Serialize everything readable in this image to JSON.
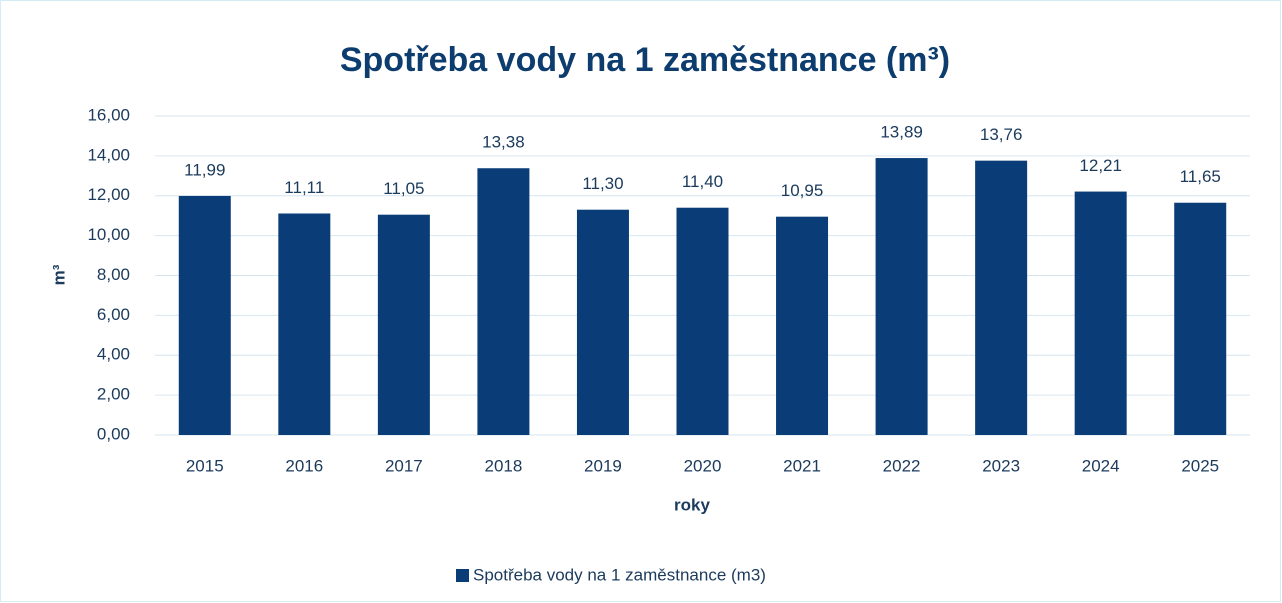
{
  "chart_data": {
    "type": "bar",
    "title": "Spotřeba vody na 1 zaměstnance (m³)",
    "y_label": "m³",
    "x_label": "roky",
    "categories": [
      "2015",
      "2016",
      "2017",
      "2018",
      "2019",
      "2020",
      "2021",
      "2022",
      "2023",
      "2024",
      "2025"
    ],
    "series": [
      {
        "name": "Spotřeba vody na 1 zaměstnance (m3)",
        "color": "#0a3c78",
        "values": [
          11.99,
          11.11,
          11.05,
          13.38,
          11.3,
          11.4,
          10.95,
          13.89,
          13.76,
          12.21,
          11.65
        ],
        "value_labels": [
          "11,99",
          "11,11",
          "11,05",
          "13,38",
          "11,30",
          "11,40",
          "10,95",
          "13,89",
          "13,76",
          "12,21",
          "11,65"
        ]
      }
    ],
    "ylim": [
      0,
      16
    ],
    "yticks": [
      {
        "value": 0,
        "label": "0,00"
      },
      {
        "value": 2,
        "label": "2,00"
      },
      {
        "value": 4,
        "label": "4,00"
      },
      {
        "value": 6,
        "label": "6,00"
      },
      {
        "value": 8,
        "label": "8,00"
      },
      {
        "value": 10,
        "label": "10,00"
      },
      {
        "value": 12,
        "label": "12,00"
      },
      {
        "value": 14,
        "label": "14,00"
      },
      {
        "value": 16,
        "label": "16,00"
      }
    ],
    "grid": true,
    "legend": "bottom"
  }
}
